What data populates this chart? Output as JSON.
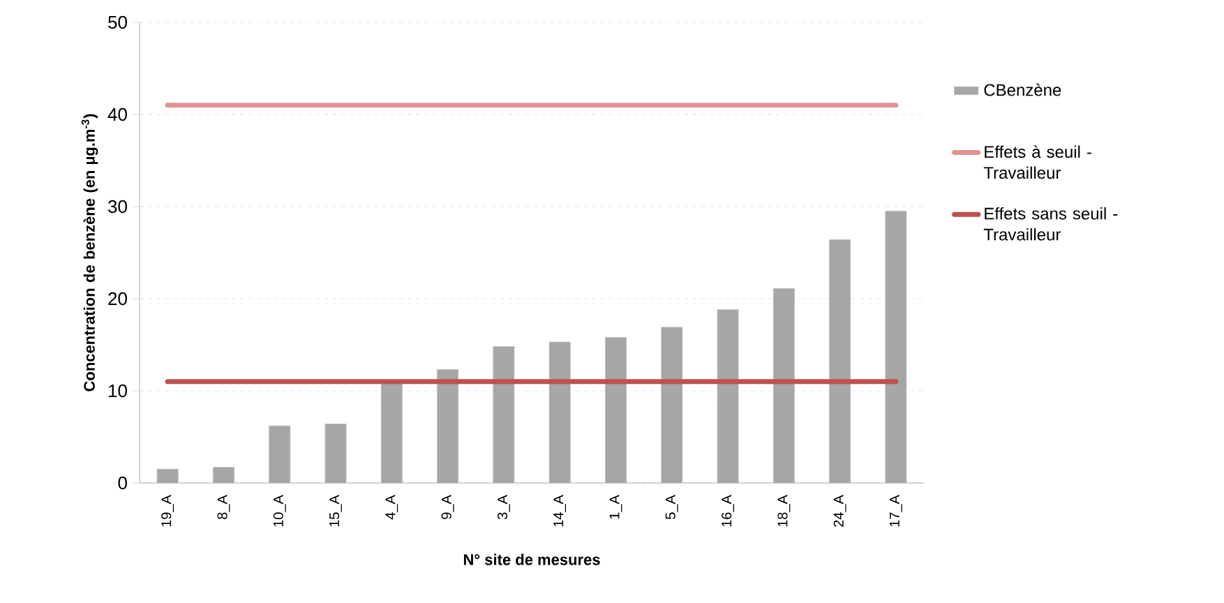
{
  "chart_data": {
    "type": "bar",
    "categories": [
      "19_A",
      "8_A",
      "10_A",
      "15_A",
      "4_A",
      "9_A",
      "3_A",
      "14_A",
      "1_A",
      "5_A",
      "16_A",
      "18_A",
      "24_A",
      "17_A"
    ],
    "series": [
      {
        "name": "CBenzène",
        "color": "#a6a6a6",
        "values": [
          1.5,
          1.7,
          6.2,
          6.4,
          10.8,
          12.3,
          14.8,
          15.3,
          15.8,
          16.9,
          18.8,
          21.1,
          26.4,
          29.5
        ]
      },
      {
        "name": "Effets à seuil  - Travailleur",
        "type": "line",
        "color": "#e09494",
        "values": [
          41,
          41,
          41,
          41,
          41,
          41,
          41,
          41,
          41,
          41,
          41,
          41,
          41,
          41
        ]
      },
      {
        "name": "Effets sans seuil - Travailleur",
        "type": "line",
        "color": "#c0504d",
        "values": [
          11,
          11,
          11,
          11,
          11,
          11,
          11,
          11,
          11,
          11,
          11,
          11,
          11,
          11
        ]
      }
    ],
    "xlabel": "N° site de mesures",
    "ylabel": "Concentration de benzène (en µg.m$^{-3}$)",
    "ylim": [
      0,
      50
    ],
    "yticks": [
      0,
      10,
      20,
      30,
      40,
      50
    ],
    "grid": "y",
    "legend": "right"
  }
}
